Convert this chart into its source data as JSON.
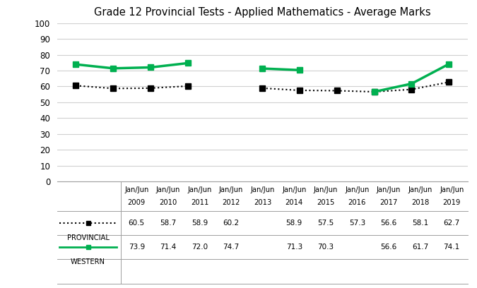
{
  "title": "Grade 12 Provincial Tests - Applied Mathematics - Average Marks",
  "categories": [
    "Jan/Jun\n2009",
    "Jan/Jun\n2010",
    "Jan/Jun\n2011",
    "Jan/Jun\n2012",
    "Jan/Jun\n2013",
    "Jan/Jun\n2014",
    "Jan/Jun\n2015",
    "Jan/Jun\n2016",
    "Jan/Jun\n2017",
    "Jan/Jun\n2018",
    "Jan/Jun\n2019"
  ],
  "x_indices": [
    0,
    1,
    2,
    3,
    4,
    5,
    6,
    7,
    8,
    9,
    10
  ],
  "provincial": {
    "label": "PROVINCIAL",
    "values": [
      60.5,
      58.7,
      58.9,
      60.2,
      null,
      58.9,
      57.5,
      57.3,
      56.6,
      58.1,
      62.7
    ],
    "color": "#000000",
    "linestyle": "dotted",
    "marker": "s",
    "linewidth": 1.5,
    "markersize": 6
  },
  "western": {
    "label": "WESTERN",
    "values": [
      73.9,
      71.4,
      72.0,
      74.7,
      null,
      71.3,
      70.3,
      null,
      56.6,
      61.7,
      74.1
    ],
    "color": "#00b050",
    "linestyle": "solid",
    "marker": "s",
    "linewidth": 2.5,
    "markersize": 6
  },
  "ylim": [
    0,
    100
  ],
  "yticks": [
    0,
    10,
    20,
    30,
    40,
    50,
    60,
    70,
    80,
    90,
    100
  ],
  "background_color": "#ffffff",
  "grid_color": "#d0d0d0",
  "table_provincial": [
    "60.5",
    "58.7",
    "58.9",
    "60.2",
    "",
    "58.9",
    "57.5",
    "57.3",
    "56.6",
    "58.1",
    "62.7"
  ],
  "table_western": [
    "73.9",
    "71.4",
    "72.0",
    "74.7",
    "",
    "71.3",
    "70.3",
    "",
    "56.6",
    "61.7",
    "74.1"
  ]
}
